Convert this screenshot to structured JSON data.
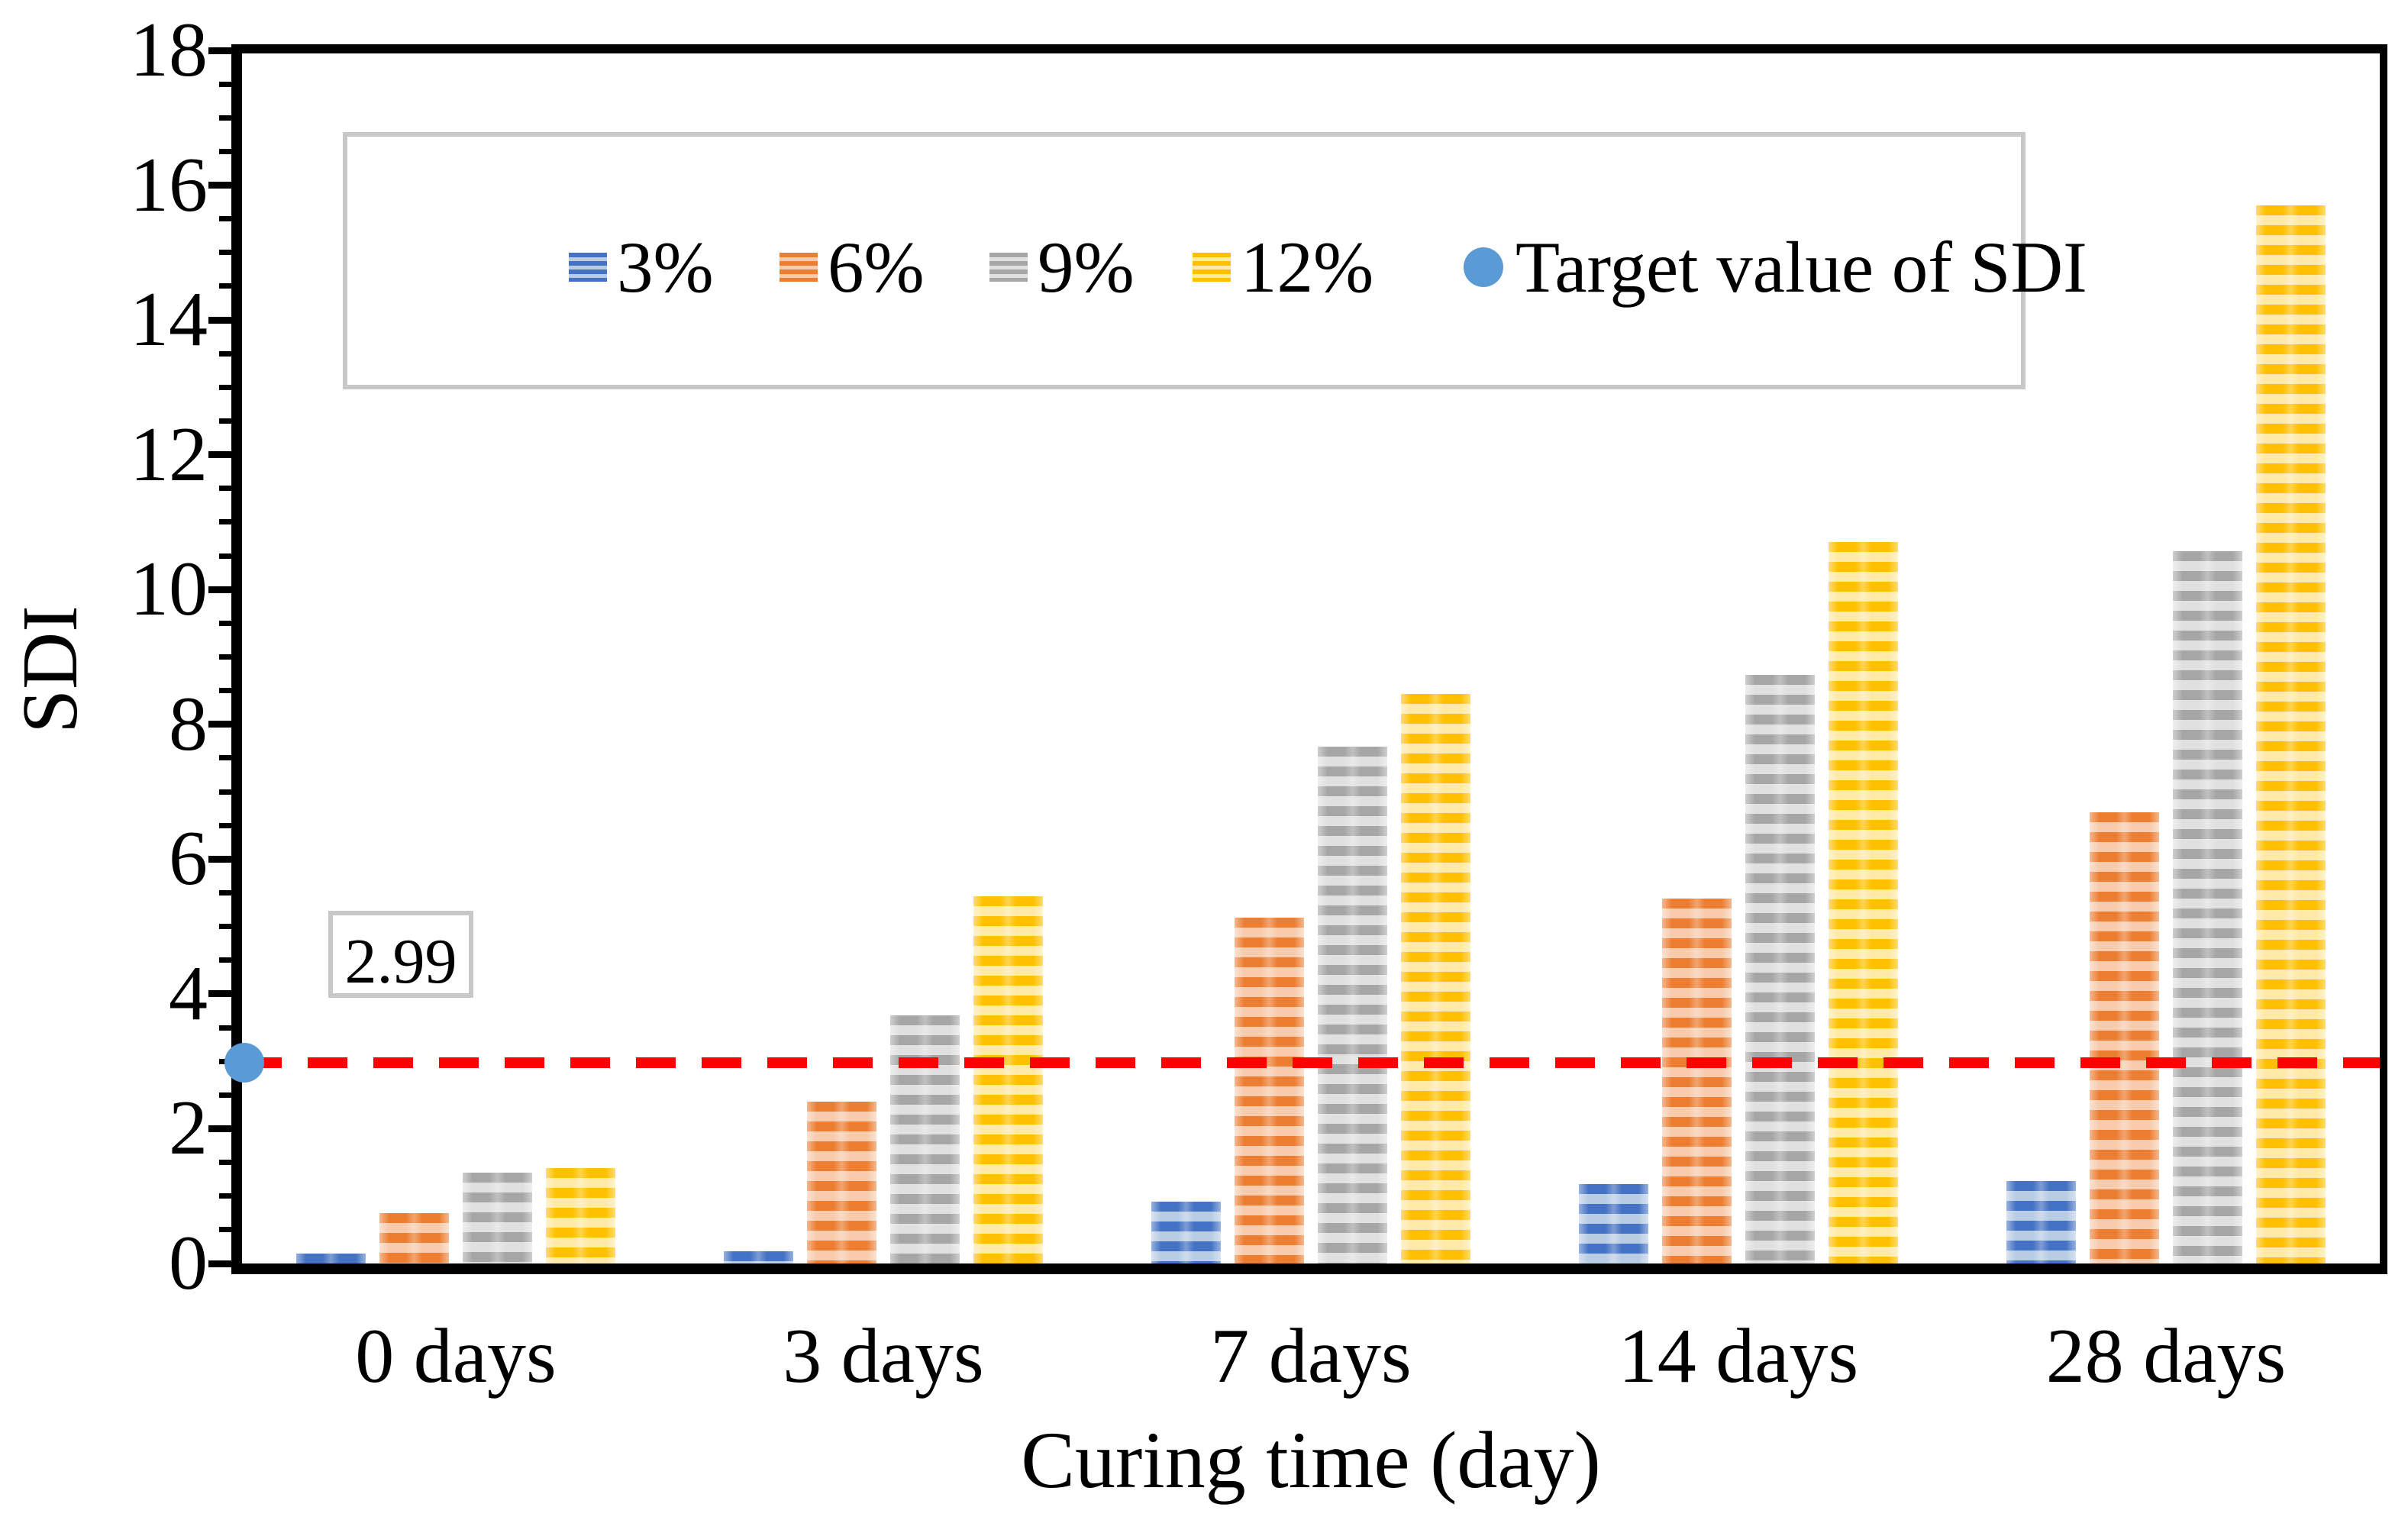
{
  "figure": {
    "ylabel": "SDI",
    "xlabel": "Curing time (day)",
    "annotation": "2.99"
  },
  "legend": {
    "items": [
      {
        "label": "3%",
        "type": "bar",
        "color": "#4472C4",
        "light": "#B8CCE4"
      },
      {
        "label": "6%",
        "type": "bar",
        "color": "#ED7D31",
        "light": "#F7CBAC"
      },
      {
        "label": "9%",
        "type": "bar",
        "color": "#A6A6A6",
        "light": "#E0E0E0"
      },
      {
        "label": "12%",
        "type": "bar",
        "color": "#FFC000",
        "light": "#FFE9A6"
      },
      {
        "label": "Target value of SDI",
        "type": "circle",
        "color": "#5B9BD5"
      }
    ]
  },
  "chart_data": {
    "type": "bar",
    "title": "",
    "xlabel": "Curing time (day)",
    "ylabel": "SDI",
    "categories": [
      "0 days",
      "3 days",
      "7 days",
      "14 days",
      "28 days"
    ],
    "series": [
      {
        "name": "3%",
        "color": "#4472C4",
        "light": "#B8CCE4",
        "values": [
          0.15,
          0.18,
          0.92,
          1.18,
          1.22
        ]
      },
      {
        "name": "6%",
        "color": "#ED7D31",
        "light": "#F7CBAC",
        "values": [
          0.75,
          2.4,
          5.13,
          5.42,
          6.7
        ]
      },
      {
        "name": "9%",
        "color": "#A6A6A6",
        "light": "#E0E0E0",
        "values": [
          1.35,
          3.68,
          7.67,
          8.73,
          10.57
        ]
      },
      {
        "name": "12%",
        "color": "#FFC000",
        "light": "#FFE9A6",
        "values": [
          1.42,
          5.45,
          8.45,
          10.7,
          15.7
        ]
      }
    ],
    "target_line": {
      "label": "Target value of SDI",
      "value": 2.99,
      "color": "#FE0000",
      "style": "dashed",
      "marker_color": "#5B9BD5",
      "annotation": "2.99"
    },
    "ylim": [
      0,
      18
    ],
    "ytick_step": 2,
    "yminor_step": 0.5,
    "ytick_labels": [
      "0",
      "2",
      "4",
      "6",
      "8",
      "10",
      "12",
      "14",
      "16",
      "18"
    ],
    "grid": false,
    "legend_position": "top",
    "bar_hatch": "horizontal-stripes"
  }
}
